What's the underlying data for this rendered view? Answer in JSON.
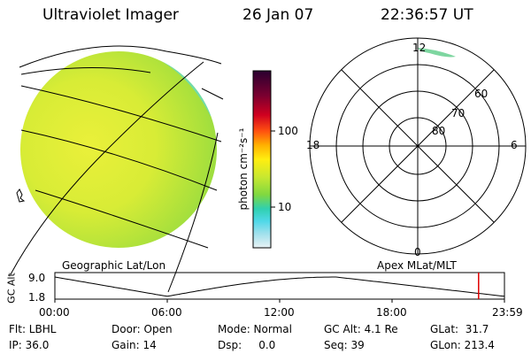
{
  "header": {
    "title": "Ultraviolet Imager",
    "date": "26 Jan 07",
    "time": "22:36:57 UT"
  },
  "colorbar": {
    "label": "photon cm⁻²s⁻¹",
    "ticks": [
      {
        "value": 100,
        "label": "100"
      },
      {
        "value": 10,
        "label": "10"
      }
    ],
    "colors": [
      "#2a0030",
      "#7a0030",
      "#d00020",
      "#ff5010",
      "#ffb000",
      "#ffee10",
      "#c8e830",
      "#80d840",
      "#30d0b0",
      "#50d8e8",
      "#a0e0ec",
      "#e8f2f4"
    ]
  },
  "images": {
    "geo_label": "Geographic Lat/Lon",
    "apex_label": "Apex MLat/MLT",
    "polar": {
      "mlt_labels": {
        "top": "12",
        "left": "18",
        "right": "6",
        "bottom": "0"
      },
      "mlat_labels": [
        "60",
        "70",
        "80"
      ]
    }
  },
  "timeline": {
    "ylabel": "GC Alt",
    "y_ticks": [
      "9.0",
      "1.8"
    ],
    "x_ticks": [
      "00:00",
      "06:00",
      "12:00",
      "18:00",
      "23:59"
    ],
    "current_time_hours": 22.62,
    "orbit_min_time_hours": 6.0,
    "orbit_min_alt": 1.8,
    "orbit_max_alt": 9.0
  },
  "status": {
    "filter": "Flt: LBHL",
    "ip": "IP: 36.0",
    "door": "Door: Open",
    "gain": "Gain: 14",
    "mode": "Mode: Normal",
    "dsp": "Dsp:     0.0",
    "gc_alt": "GC Alt: 4.1 Re",
    "seq": "Seq: 39",
    "glat": "GLat:  31.7",
    "glon": "GLon: 213.4"
  }
}
